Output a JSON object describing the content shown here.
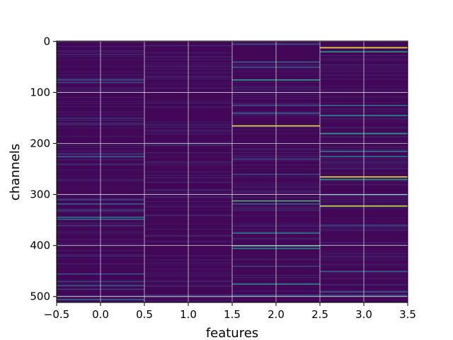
{
  "chart_data": {
    "type": "heatmap",
    "title": "",
    "xlabel": "features",
    "ylabel": "channels",
    "xlim": [
      -0.5,
      3.5
    ],
    "ylim": [
      511.5,
      -0.5
    ],
    "x_ticks": [
      -0.5,
      0.0,
      0.5,
      1.0,
      1.5,
      2.0,
      2.5,
      3.0,
      3.5
    ],
    "x_tick_labels": [
      "−0.5",
      "0.0",
      "0.5",
      "1.0",
      "1.5",
      "2.0",
      "2.5",
      "3.0",
      "3.5"
    ],
    "y_ticks": [
      0,
      100,
      200,
      300,
      400,
      500
    ],
    "y_tick_labels": [
      "0",
      "100",
      "200",
      "300",
      "400",
      "500"
    ],
    "grid": true,
    "colormap": "viridis",
    "n_rows": 512,
    "n_cols": 4,
    "background_value": 0.02,
    "highlights": [
      {
        "col": 0,
        "row": 25,
        "value": 0.12
      },
      {
        "col": 0,
        "row": 75,
        "value": 0.25
      },
      {
        "col": 0,
        "row": 80,
        "value": 0.22
      },
      {
        "col": 0,
        "row": 150,
        "value": 0.15
      },
      {
        "col": 0,
        "row": 160,
        "value": 0.12
      },
      {
        "col": 0,
        "row": 220,
        "value": 0.2
      },
      {
        "col": 0,
        "row": 225,
        "value": 0.3
      },
      {
        "col": 0,
        "row": 240,
        "value": 0.15
      },
      {
        "col": 0,
        "row": 310,
        "value": 0.22
      },
      {
        "col": 0,
        "row": 318,
        "value": 0.3
      },
      {
        "col": 0,
        "row": 330,
        "value": 0.18
      },
      {
        "col": 0,
        "row": 344,
        "value": 0.4
      },
      {
        "col": 0,
        "row": 348,
        "value": 0.35
      },
      {
        "col": 0,
        "row": 360,
        "value": 0.15
      },
      {
        "col": 0,
        "row": 420,
        "value": 0.12
      },
      {
        "col": 0,
        "row": 455,
        "value": 0.25
      },
      {
        "col": 0,
        "row": 470,
        "value": 0.2
      },
      {
        "col": 0,
        "row": 478,
        "value": 0.3
      },
      {
        "col": 0,
        "row": 485,
        "value": 0.18
      },
      {
        "col": 0,
        "row": 498,
        "value": 0.15
      },
      {
        "col": 0,
        "row": 505,
        "value": 0.35
      },
      {
        "col": 1,
        "row": 8,
        "value": 0.12
      },
      {
        "col": 1,
        "row": 30,
        "value": 0.1
      },
      {
        "col": 1,
        "row": 120,
        "value": 0.1
      },
      {
        "col": 1,
        "row": 200,
        "value": 0.12
      },
      {
        "col": 1,
        "row": 290,
        "value": 0.1
      },
      {
        "col": 1,
        "row": 340,
        "value": 0.12
      },
      {
        "col": 1,
        "row": 380,
        "value": 0.1
      },
      {
        "col": 1,
        "row": 470,
        "value": 0.1
      },
      {
        "col": 1,
        "row": 497,
        "value": 0.2
      },
      {
        "col": 2,
        "row": 5,
        "value": 0.25
      },
      {
        "col": 2,
        "row": 40,
        "value": 0.3
      },
      {
        "col": 2,
        "row": 50,
        "value": 0.25
      },
      {
        "col": 2,
        "row": 75,
        "value": 0.55
      },
      {
        "col": 2,
        "row": 125,
        "value": 0.25
      },
      {
        "col": 2,
        "row": 140,
        "value": 0.3
      },
      {
        "col": 2,
        "row": 165,
        "value": 0.95
      },
      {
        "col": 2,
        "row": 230,
        "value": 0.2
      },
      {
        "col": 2,
        "row": 260,
        "value": 0.2
      },
      {
        "col": 2,
        "row": 312,
        "value": 0.65
      },
      {
        "col": 2,
        "row": 318,
        "value": 0.3
      },
      {
        "col": 2,
        "row": 375,
        "value": 0.45
      },
      {
        "col": 2,
        "row": 400,
        "value": 0.6
      },
      {
        "col": 2,
        "row": 405,
        "value": 0.45
      },
      {
        "col": 2,
        "row": 440,
        "value": 0.2
      },
      {
        "col": 2,
        "row": 475,
        "value": 0.45
      },
      {
        "col": 2,
        "row": 497,
        "value": 0.3
      },
      {
        "col": 3,
        "row": 12,
        "value": 1.0
      },
      {
        "col": 3,
        "row": 20,
        "value": 0.55
      },
      {
        "col": 3,
        "row": 125,
        "value": 0.35
      },
      {
        "col": 3,
        "row": 145,
        "value": 0.45
      },
      {
        "col": 3,
        "row": 180,
        "value": 0.55
      },
      {
        "col": 3,
        "row": 215,
        "value": 0.4
      },
      {
        "col": 3,
        "row": 225,
        "value": 0.4
      },
      {
        "col": 3,
        "row": 265,
        "value": 0.95
      },
      {
        "col": 3,
        "row": 270,
        "value": 0.55
      },
      {
        "col": 3,
        "row": 300,
        "value": 0.35
      },
      {
        "col": 3,
        "row": 322,
        "value": 0.9
      },
      {
        "col": 3,
        "row": 360,
        "value": 0.2
      },
      {
        "col": 3,
        "row": 450,
        "value": 0.3
      },
      {
        "col": 3,
        "row": 490,
        "value": 0.25
      },
      {
        "col": 3,
        "row": 497,
        "value": 0.3
      }
    ]
  }
}
